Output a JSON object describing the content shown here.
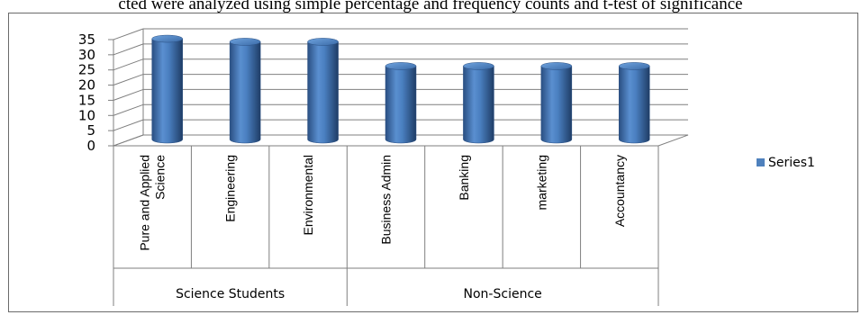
{
  "caption": "cted were analyzed using simple percentage and frequency counts and t-test of significance",
  "chart_data": {
    "type": "bar",
    "subtype": "3d-cylinder",
    "title": "",
    "xlabel": "",
    "ylabel": "",
    "ylim": [
      0,
      35
    ],
    "yticks": [
      0,
      5,
      10,
      15,
      20,
      25,
      30,
      35
    ],
    "grid": true,
    "legend_position": "right",
    "categories": [
      [
        "Pure and Applied",
        "Science"
      ],
      [
        "Engineering"
      ],
      [
        "Environmental"
      ],
      [
        "Business Admin"
      ],
      [
        "Banking"
      ],
      [
        "marketing"
      ],
      [
        "Accountancy"
      ]
    ],
    "groups": [
      {
        "label": "Science Students",
        "span": 3
      },
      {
        "label": "Non-Science",
        "span": 4
      }
    ],
    "series": [
      {
        "name": "Series1",
        "color": "#4f81bd",
        "values": [
          33.5,
          32.5,
          32.5,
          24.5,
          24.5,
          24.5,
          24.5
        ]
      }
    ]
  }
}
